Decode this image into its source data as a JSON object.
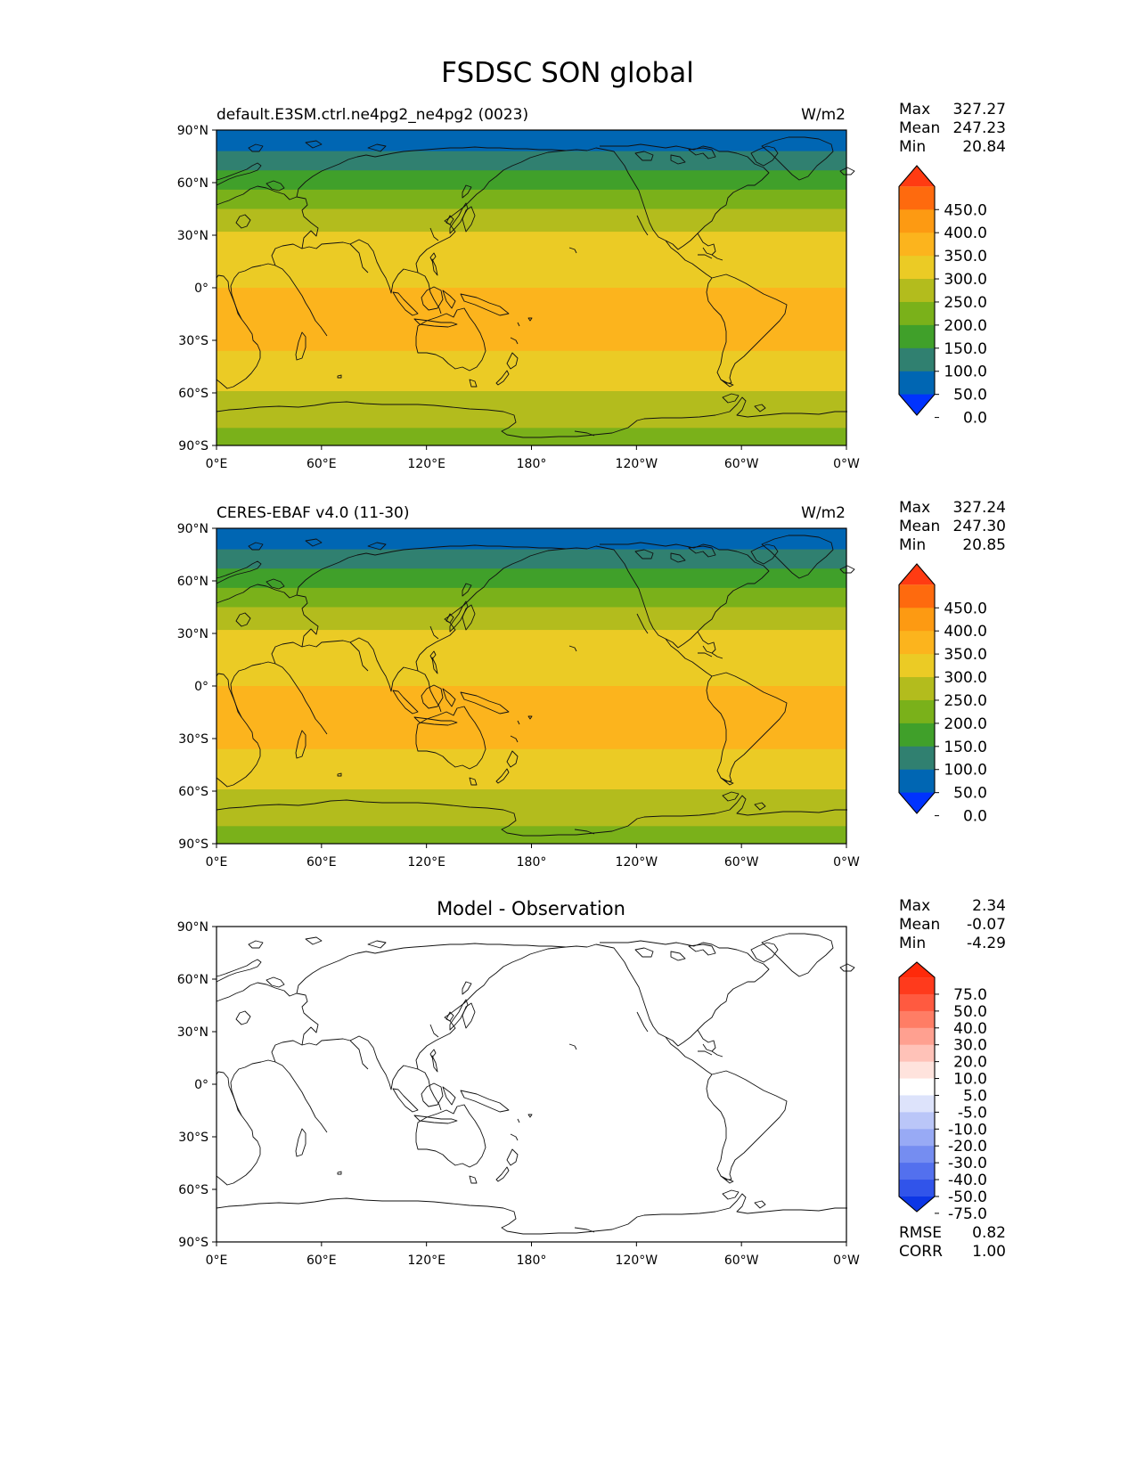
{
  "title": "FSDSC SON global",
  "lat_labels": [
    "90°N",
    "60°N",
    "30°N",
    "0°",
    "30°S",
    "60°S",
    "90°S"
  ],
  "lon_labels": [
    "0°E",
    "60°E",
    "120°E",
    "180°",
    "120°W",
    "60°W",
    "0°W"
  ],
  "panels": [
    {
      "id": "model",
      "title_left": "default.E3SM.ctrl.ne4pg2_ne4pg2 (0023)",
      "title_center": "",
      "units": "W/m2",
      "stats": [
        {
          "label": "Max",
          "value": "327.27"
        },
        {
          "label": "Mean",
          "value": "247.23"
        },
        {
          "label": "Min",
          "value": "20.84"
        }
      ],
      "colorbar": {
        "tick_labels": [
          "450.0",
          "400.0",
          "350.0",
          "300.0",
          "250.0",
          "200.0",
          "150.0",
          "100.0",
          "50.0",
          "0.0"
        ],
        "colors": [
          "#ff3b12",
          "#fe6a0e",
          "#fd9a12",
          "#fcb41d",
          "#ebcb25",
          "#b3bc1d",
          "#7ab11a",
          "#40a02a",
          "#308070",
          "#0066b3",
          "#0033ff"
        ]
      }
    },
    {
      "id": "obs",
      "title_left": "CERES-EBAF v4.0 (11-30)",
      "title_center": "",
      "units": "W/m2",
      "stats": [
        {
          "label": "Max",
          "value": "327.24"
        },
        {
          "label": "Mean",
          "value": "247.30"
        },
        {
          "label": "Min",
          "value": "20.85"
        }
      ],
      "colorbar": {
        "tick_labels": [
          "450.0",
          "400.0",
          "350.0",
          "300.0",
          "250.0",
          "200.0",
          "150.0",
          "100.0",
          "50.0",
          "0.0"
        ],
        "colors": [
          "#ff3b12",
          "#fe6a0e",
          "#fd9a12",
          "#fcb41d",
          "#ebcb25",
          "#b3bc1d",
          "#7ab11a",
          "#40a02a",
          "#308070",
          "#0066b3",
          "#0033ff"
        ]
      }
    },
    {
      "id": "diff",
      "title_left": "",
      "title_center": "Model - Observation",
      "units": "",
      "stats": [
        {
          "label": "Max",
          "value": "2.34"
        },
        {
          "label": "Mean",
          "value": "-0.07"
        },
        {
          "label": "Min",
          "value": "-4.29"
        }
      ],
      "extra_stats": [
        {
          "label": "RMSE",
          "value": "0.82"
        },
        {
          "label": "CORR",
          "value": "1.00"
        }
      ],
      "colorbar": {
        "tick_labels": [
          "75.0",
          "50.0",
          "40.0",
          "30.0",
          "20.0",
          "10.0",
          "5.0",
          "-5.0",
          "-10.0",
          "-20.0",
          "-30.0",
          "-40.0",
          "-50.0",
          "-75.0"
        ],
        "colors": [
          "#ff2a0a",
          "#ff3a1c",
          "#ff5a40",
          "#ff7d65",
          "#ffa090",
          "#ffc2b8",
          "#ffe3dd",
          "#ffffff",
          "#dde3fb",
          "#bac6f8",
          "#98aaf5",
          "#758df1",
          "#5370ee",
          "#3154ea",
          "#0c36e6"
        ]
      }
    }
  ],
  "chart_data": [
    {
      "type": "heatmap",
      "title": "default.E3SM.ctrl.ne4pg2_ne4pg2 (0023)",
      "units": "W/m2",
      "projection": "PlateCarree",
      "xlim": [
        0,
        360
      ],
      "ylim": [
        -90,
        90
      ],
      "contour_levels": [
        0,
        50,
        100,
        150,
        200,
        250,
        300,
        350,
        400,
        450
      ],
      "zonal_bands": [
        {
          "lat_from": 90,
          "lat_to": 78,
          "value": 25
        },
        {
          "lat_from": 78,
          "lat_to": 67,
          "value": 75
        },
        {
          "lat_from": 67,
          "lat_to": 56,
          "value": 125
        },
        {
          "lat_from": 56,
          "lat_to": 45,
          "value": 175
        },
        {
          "lat_from": 45,
          "lat_to": 32,
          "value": 225
        },
        {
          "lat_from": 32,
          "lat_to": 0,
          "value": 275
        },
        {
          "lat_from": 0,
          "lat_to": -36,
          "value": 325
        },
        {
          "lat_from": -36,
          "lat_to": -59,
          "value": 275
        },
        {
          "lat_from": -59,
          "lat_to": -80,
          "value": 225
        },
        {
          "lat_from": -80,
          "lat_to": -90,
          "value": 175
        }
      ]
    },
    {
      "type": "heatmap",
      "title": "CERES-EBAF v4.0 (11-30)",
      "units": "W/m2",
      "projection": "PlateCarree",
      "xlim": [
        0,
        360
      ],
      "ylim": [
        -90,
        90
      ],
      "contour_levels": [
        0,
        50,
        100,
        150,
        200,
        250,
        300,
        350,
        400,
        450
      ],
      "zonal_bands": [
        {
          "lat_from": 90,
          "lat_to": 78,
          "value": 25
        },
        {
          "lat_from": 78,
          "lat_to": 67,
          "value": 75
        },
        {
          "lat_from": 67,
          "lat_to": 56,
          "value": 125
        },
        {
          "lat_from": 56,
          "lat_to": 45,
          "value": 175
        },
        {
          "lat_from": 45,
          "lat_to": 32,
          "value": 225
        },
        {
          "lat_from": 32,
          "lat_to": 0,
          "value": 275
        },
        {
          "lat_from": 0,
          "lat_to": -36,
          "value": 325
        },
        {
          "lat_from": -36,
          "lat_to": -59,
          "value": 275
        },
        {
          "lat_from": -59,
          "lat_to": -80,
          "value": 225
        },
        {
          "lat_from": -80,
          "lat_to": -90,
          "value": 175
        }
      ]
    },
    {
      "type": "heatmap",
      "title": "Model - Observation",
      "units": "",
      "projection": "PlateCarree",
      "xlim": [
        0,
        360
      ],
      "ylim": [
        -90,
        90
      ],
      "contour_levels": [
        -75,
        -50,
        -40,
        -30,
        -20,
        -10,
        -5,
        5,
        10,
        20,
        30,
        40,
        50,
        75
      ],
      "zonal_bands": [
        {
          "lat_from": 90,
          "lat_to": -90,
          "value": 0
        }
      ]
    }
  ]
}
